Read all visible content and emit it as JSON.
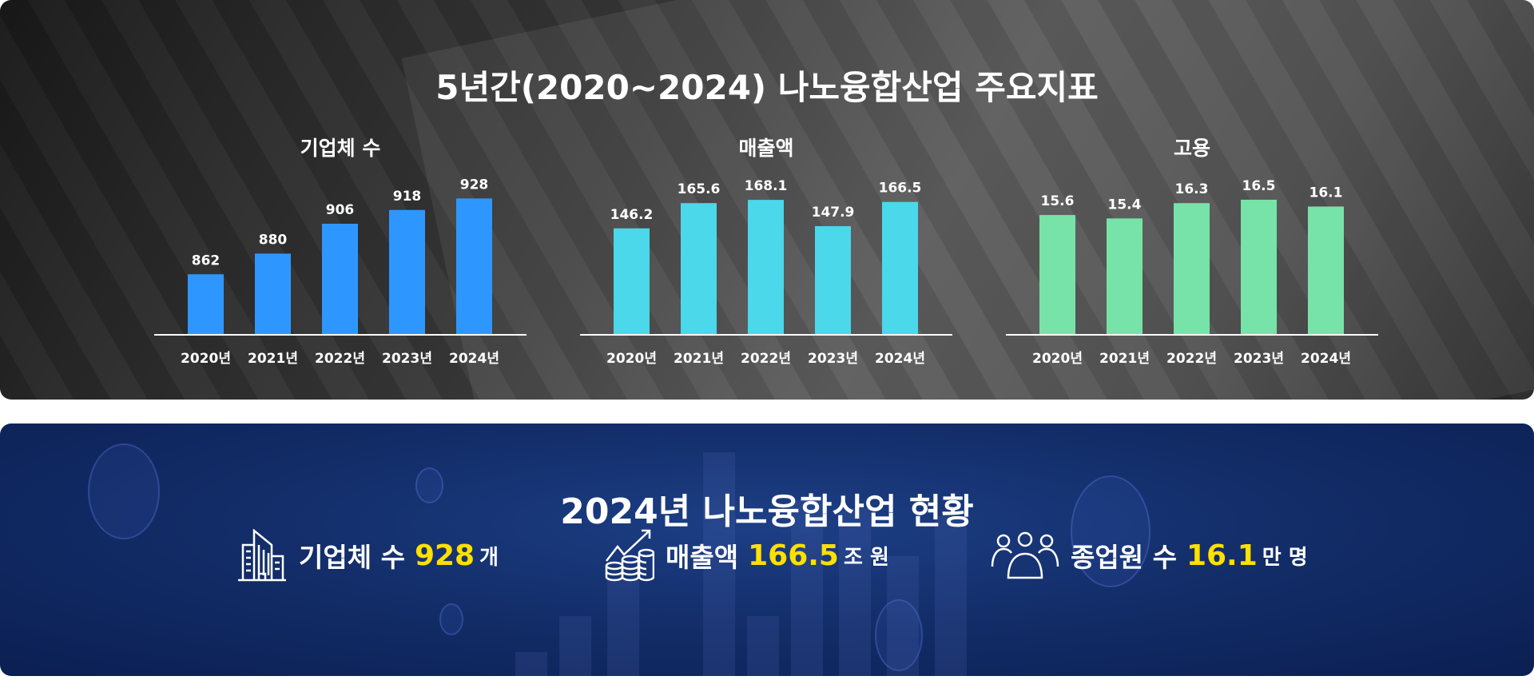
{
  "top": {
    "title": "5년간(2020~2024) 나노융합산업 주요지표"
  },
  "chart_data": [
    {
      "type": "bar",
      "title": "기업체 수",
      "categories": [
        "2020년",
        "2021년",
        "2022년",
        "2023년",
        "2024년"
      ],
      "values": [
        862,
        880,
        906,
        918,
        928
      ],
      "labels": [
        "862",
        "880",
        "906",
        "918",
        "928"
      ],
      "ylim": [
        810,
        938
      ],
      "color": "#2e97ff",
      "grid": false
    },
    {
      "type": "bar",
      "title": "매출액",
      "categories": [
        "2020년",
        "2021년",
        "2022년",
        "2023년",
        "2024년"
      ],
      "values": [
        146.2,
        165.6,
        168.1,
        147.9,
        166.5
      ],
      "labels": [
        "146.2",
        "165.6",
        "168.1",
        "147.9",
        "166.5"
      ],
      "ylim": [
        65,
        178
      ],
      "color": "#4ad8ea",
      "grid": false
    },
    {
      "type": "bar",
      "title": "고용",
      "categories": [
        "2020년",
        "2021년",
        "2022년",
        "2023년",
        "2024년"
      ],
      "values": [
        15.6,
        15.4,
        16.3,
        16.5,
        16.1
      ],
      "labels": [
        "15.6",
        "15.4",
        "16.3",
        "16.5",
        "16.1"
      ],
      "ylim": [
        8.6,
        17.25
      ],
      "color": "#77e3a8",
      "grid": false
    }
  ],
  "bottom": {
    "title": "2024년 나노융합산업 현황",
    "stats": [
      {
        "icon": "building-icon",
        "label": "기업체 수",
        "value": "928",
        "unit": "개"
      },
      {
        "icon": "coins-growth-icon",
        "label": "매출액",
        "value": "166.5",
        "unit": "조 원"
      },
      {
        "icon": "people-group-icon",
        "label": "종업원 수",
        "value": "16.1",
        "unit": "만 명"
      }
    ],
    "highlight_color": "#ffe000"
  }
}
